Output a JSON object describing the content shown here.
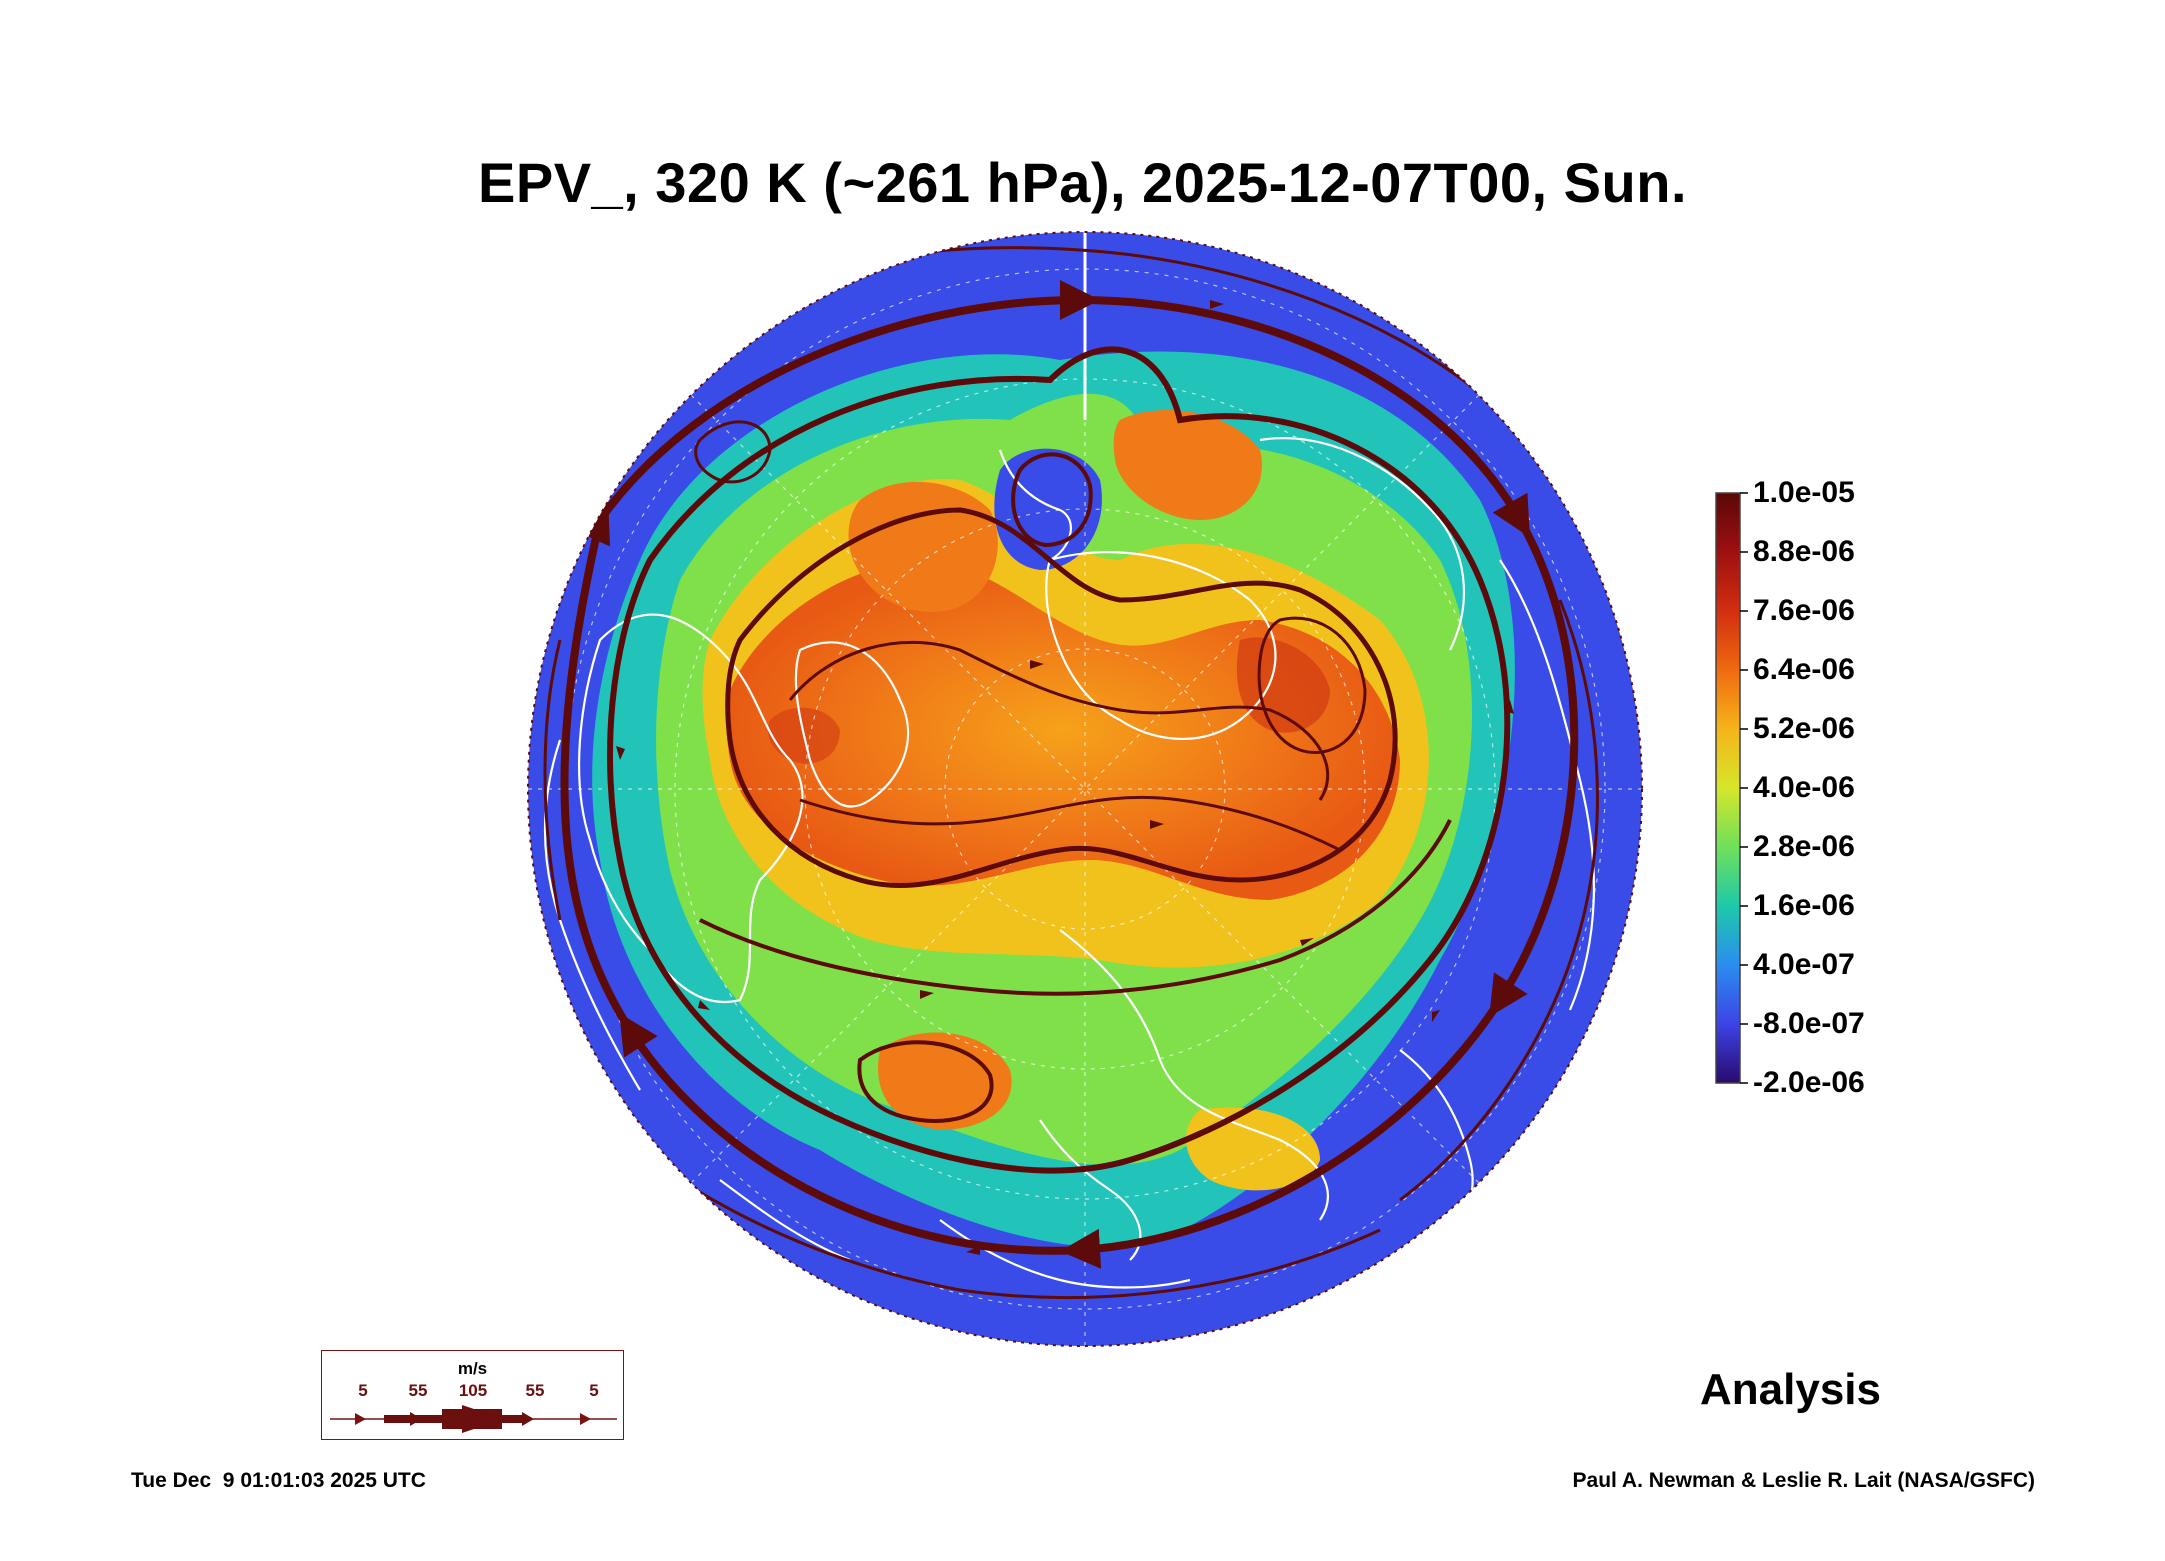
{
  "title": "EPV_, 320 K (~261 hPa), 2025-12-07T00, Sun.",
  "colorbar": {
    "labels": [
      "1.0e-05",
      "8.8e-06",
      "7.6e-06",
      "6.4e-06",
      "5.2e-06",
      "4.0e-06",
      "2.8e-06",
      "1.6e-06",
      "4.0e-07",
      "-8.0e-07",
      "-2.0e-06"
    ],
    "colors": [
      "#6b0f0f",
      "#a01010",
      "#d12f10",
      "#f06a10",
      "#f5b41a",
      "#d6e62a",
      "#6fe05a",
      "#1ec9a8",
      "#2a8df0",
      "#3c44e6",
      "#2a0a6e"
    ]
  },
  "wind_key": {
    "unit": "m/s",
    "speeds": [
      "5",
      "55",
      "105",
      "55",
      "5"
    ]
  },
  "analysis_label": "Analysis",
  "footer": {
    "timestamp": "Tue Dec  9 01:01:03 2025 UTC",
    "credit": "Paul A. Newman & Leslie R. Lait (NASA/GSFC)"
  },
  "map": {
    "projection": "orthographic-north-polar",
    "field_colors": {
      "low": "#3a4ce8",
      "mid_low": "#22c3b8",
      "mid": "#7fe04a",
      "mid_high": "#f2c21c",
      "high": "#f07a18",
      "peak": "#e04a12"
    },
    "streamline_color": "#5c0a0a",
    "coastline_color": "#ffffff"
  }
}
